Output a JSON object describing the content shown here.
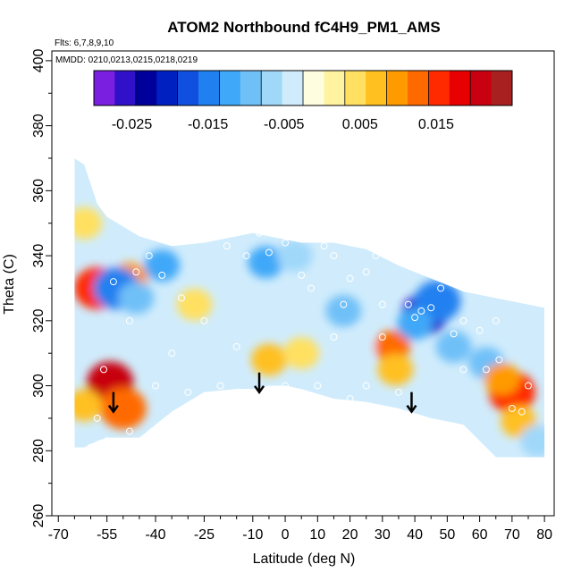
{
  "chart_data": {
    "type": "heatmap",
    "title": "ATOM2 Northbound fC4H9_PM1_AMS",
    "flights_note": "Flts: 6,7,8,9,10",
    "dates_note": "MMDD: 0210,0213,0215,0218,0219",
    "xlabel": "Latitude (deg N)",
    "ylabel": "Theta (C)",
    "xlim": [
      -72,
      83
    ],
    "ylim": [
      260,
      403
    ],
    "x_ticks": [
      "-70",
      "-55",
      "-40",
      "-25",
      "-10",
      "0",
      "10",
      "20",
      "30",
      "40",
      "50",
      "60",
      "70",
      "80"
    ],
    "x_tick_values": [
      -70,
      -55,
      -40,
      -25,
      -10,
      0,
      10,
      20,
      30,
      40,
      50,
      60,
      70,
      80
    ],
    "y_ticks": [
      "260",
      "280",
      "300",
      "320",
      "340",
      "360",
      "380",
      "400"
    ],
    "y_tick_values": [
      260,
      280,
      300,
      320,
      340,
      360,
      380,
      400
    ],
    "colorbar": {
      "range": [
        -0.03,
        0.025
      ],
      "tick_labels": [
        "-0.025",
        "-0.015",
        "-0.005",
        "0.005",
        "0.015"
      ],
      "tick_values": [
        -0.025,
        -0.015,
        -0.005,
        0.005,
        0.015
      ],
      "colors": [
        "#7a1fe0",
        "#3010c8",
        "#00009a",
        "#0020c0",
        "#1050e0",
        "#2080f0",
        "#40a8f8",
        "#70c0f8",
        "#a0d8fa",
        "#d0ecfc",
        "#fffde0",
        "#fff2a0",
        "#ffe060",
        "#ffc020",
        "#ff9a00",
        "#ff6a00",
        "#ff2a00",
        "#e80000",
        "#c80010",
        "#a82020"
      ]
    },
    "domain": {
      "lat": [
        -65,
        -62,
        -58,
        -55,
        -45,
        -35,
        -25,
        -15,
        -10,
        -5,
        0,
        5,
        15,
        25,
        35,
        45,
        55,
        65,
        75,
        80
      ],
      "theta_top": [
        370,
        368,
        356,
        352,
        346,
        343,
        344,
        346,
        347,
        346,
        345,
        344,
        344,
        342,
        337,
        333,
        329,
        327,
        325,
        324
      ],
      "theta_bottom": [
        281,
        281,
        283,
        284,
        284,
        292,
        298,
        299,
        299,
        300,
        300,
        299,
        296,
        295,
        293,
        290,
        288,
        278,
        278,
        278
      ]
    },
    "anomalies": [
      {
        "lat": -54,
        "theta": 301,
        "value": 0.02
      },
      {
        "lat": -50,
        "theta": 293,
        "value": 0.014
      },
      {
        "lat": -62,
        "theta": 294,
        "value": 0.008
      },
      {
        "lat": -58,
        "theta": 330,
        "value": 0.016
      },
      {
        "lat": -48,
        "theta": 333,
        "value": 0.01
      },
      {
        "lat": -52,
        "theta": 330,
        "value": -0.014
      },
      {
        "lat": -46,
        "theta": 327,
        "value": -0.009
      },
      {
        "lat": -38,
        "theta": 337,
        "value": -0.012
      },
      {
        "lat": -28,
        "theta": 325,
        "value": 0.005
      },
      {
        "lat": -6,
        "theta": 338,
        "value": -0.012
      },
      {
        "lat": 3,
        "theta": 340,
        "value": -0.006
      },
      {
        "lat": -5,
        "theta": 308,
        "value": 0.006
      },
      {
        "lat": 5,
        "theta": 310,
        "value": 0.005
      },
      {
        "lat": 18,
        "theta": 323,
        "value": -0.01
      },
      {
        "lat": 33,
        "theta": 312,
        "value": 0.012
      },
      {
        "lat": 34,
        "theta": 305,
        "value": 0.008
      },
      {
        "lat": 43,
        "theta": 322,
        "value": -0.026
      },
      {
        "lat": 47,
        "theta": 326,
        "value": -0.015
      },
      {
        "lat": 40,
        "theta": 319,
        "value": -0.012
      },
      {
        "lat": 52,
        "theta": 312,
        "value": -0.008
      },
      {
        "lat": 62,
        "theta": 307,
        "value": -0.01
      },
      {
        "lat": 70,
        "theta": 298,
        "value": 0.016
      },
      {
        "lat": 67,
        "theta": 302,
        "value": 0.01
      },
      {
        "lat": 72,
        "theta": 289,
        "value": 0.007
      },
      {
        "lat": 22,
        "theta": 312,
        "value": -0.004
      },
      {
        "lat": -62,
        "theta": 350,
        "value": 0.004
      },
      {
        "lat": -20,
        "theta": 305,
        "value": -0.003
      },
      {
        "lat": 78,
        "theta": 283,
        "value": -0.006
      }
    ],
    "sample_points": [
      [
        -56,
        305
      ],
      [
        -58,
        290
      ],
      [
        -48,
        286
      ],
      [
        -53,
        332
      ],
      [
        -46,
        335
      ],
      [
        -42,
        340
      ],
      [
        -38,
        334
      ],
      [
        -32,
        327
      ],
      [
        -48,
        320
      ],
      [
        -28,
        345
      ],
      [
        -18,
        343
      ],
      [
        -12,
        340
      ],
      [
        -8,
        347
      ],
      [
        -5,
        341
      ],
      [
        0,
        344
      ],
      [
        5,
        334
      ],
      [
        8,
        330
      ],
      [
        12,
        343
      ],
      [
        15,
        340
      ],
      [
        20,
        333
      ],
      [
        18,
        325
      ],
      [
        25,
        335
      ],
      [
        28,
        340
      ],
      [
        30,
        325
      ],
      [
        38,
        325
      ],
      [
        40,
        321
      ],
      [
        42,
        323
      ],
      [
        45,
        324
      ],
      [
        48,
        330
      ],
      [
        52,
        316
      ],
      [
        55,
        320
      ],
      [
        60,
        317
      ],
      [
        62,
        305
      ],
      [
        66,
        308
      ],
      [
        70,
        293
      ],
      [
        73,
        292
      ],
      [
        75,
        300
      ],
      [
        30,
        315
      ],
      [
        45,
        286
      ],
      [
        20,
        296
      ],
      [
        10,
        300
      ],
      [
        0,
        300
      ],
      [
        -10,
        298
      ],
      [
        -20,
        300
      ],
      [
        -30,
        298
      ],
      [
        -40,
        300
      ],
      [
        -55,
        283
      ],
      [
        -60,
        281
      ],
      [
        -15,
        312
      ],
      [
        -25,
        320
      ],
      [
        -35,
        310
      ],
      [
        15,
        315
      ],
      [
        25,
        300
      ],
      [
        35,
        298
      ],
      [
        55,
        305
      ],
      [
        65,
        320
      ]
    ],
    "arrows": [
      {
        "lat": -53,
        "theta": 292
      },
      {
        "lat": -8,
        "theta": 298
      },
      {
        "lat": 39,
        "theta": 292
      }
    ]
  }
}
